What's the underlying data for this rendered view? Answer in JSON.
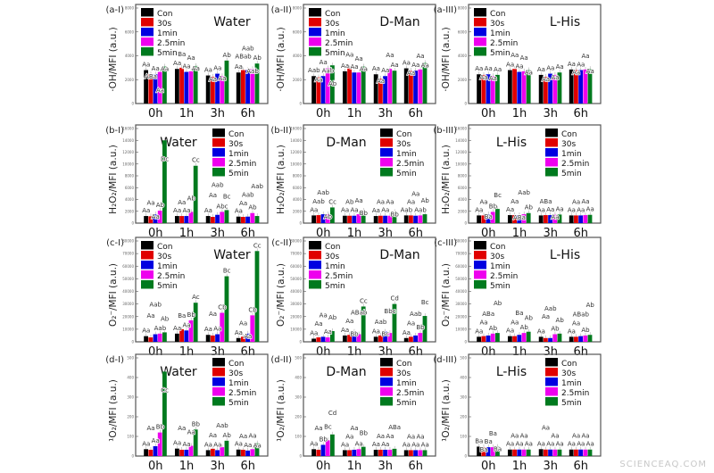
{
  "legend": [
    "Con",
    "30s",
    "1min",
    "2.5min",
    "5min"
  ],
  "series_colors": [
    "#000000",
    "#e00000",
    "#0000e0",
    "#ee00ee",
    "#007a1e"
  ],
  "categories": [
    "0h",
    "1h",
    "3h",
    "6h"
  ],
  "watermark": "SCIENCEAQ.COM",
  "chart_data": [
    {
      "type": "bar",
      "panel": "(a-I)",
      "title": "Water",
      "ylabel": "·OH/MFI (a.u.)",
      "ylim": [
        0,
        8000
      ],
      "yticks": [
        "0",
        "2000",
        "4000",
        "6000",
        "8000"
      ],
      "legend_position": "top-left",
      "series_values": [
        [
          2800,
          2450,
          2450,
          2650,
          3100
        ],
        [
          2900,
          3000,
          2650,
          2700,
          3150
        ],
        [
          2350,
          2250,
          2500,
          2300,
          3600
        ],
        [
          2600,
          2800,
          2800,
          2900,
          3350
        ]
      ],
      "labels": [
        [
          "Aa",
          "ABa",
          "Aa",
          "Aa",
          "Aa"
        ],
        [
          "Aa",
          "Ba",
          "Aa",
          "Aa",
          "Aa"
        ],
        [
          "Aa",
          "Aa",
          "Aa",
          "Aa",
          "Ab"
        ],
        [
          "Aa",
          "ABab",
          "Aab",
          "Aab",
          "Ab"
        ]
      ]
    },
    {
      "type": "bar",
      "panel": "(a-II)",
      "title": "D-Man",
      "ylabel": "·OH/MFI (a.u.)",
      "ylim": [
        0,
        8000
      ],
      "yticks": [
        "0",
        "2000",
        "4000",
        "6000",
        "8000"
      ],
      "legend_position": "top-left",
      "series_values": [
        [
          2300,
          2200,
          2300,
          2950,
          3200
        ],
        [
          2700,
          2950,
          2600,
          2600,
          3100
        ],
        [
          2450,
          2100,
          2300,
          2900,
          2750
        ],
        [
          2950,
          2750,
          2750,
          2850,
          3400
        ]
      ],
      "labels": [
        [
          "Aab",
          "Aa",
          "Aa",
          "Aab",
          "Ab"
        ],
        [
          "Aa",
          "Aa",
          "Aa",
          "Aa",
          "Aa"
        ],
        [
          "Aa",
          "Aa",
          "Aa",
          "Aa",
          "Aa"
        ],
        [
          "Aa",
          "Aa",
          "Aa",
          "Aa",
          "Aa"
        ]
      ]
    },
    {
      "type": "bar",
      "panel": "(a-III)",
      "title": "L-His",
      "ylabel": "·OH/MFI (a.u.)",
      "ylim": [
        0,
        8000
      ],
      "yticks": [
        "0",
        "2000",
        "4000",
        "6000",
        "8000"
      ],
      "legend_position": "top-left",
      "series_values": [
        [
          2450,
          2400,
          2450,
          2300,
          2400
        ],
        [
          2800,
          2900,
          2650,
          2700,
          2800
        ],
        [
          2400,
          2250,
          2500,
          2400,
          2600
        ],
        [
          2850,
          2800,
          2800,
          2850,
          2900
        ]
      ],
      "labels": [
        [
          "Aa",
          "Aa",
          "Aa",
          "Aa",
          "Aa"
        ],
        [
          "Aa",
          "Aa",
          "Aa",
          "Aa",
          "Aa"
        ],
        [
          "Aa",
          "Aa",
          "Aa",
          "Aa",
          "Aa"
        ],
        [
          "Aa",
          "Aa",
          "Aa",
          "Aa",
          "Aa"
        ]
      ]
    },
    {
      "type": "bar",
      "panel": "(b-I)",
      "title": "Water",
      "ylabel": "H₂O₂/MFI (a.u.)",
      "ylim": [
        0,
        16000
      ],
      "yticks": [
        "0",
        "2000",
        "4000",
        "6000",
        "8000",
        "10000",
        "12000",
        "14000",
        "16000"
      ],
      "legend_position": "top-right",
      "series_values": [
        [
          1200,
          1150,
          1500,
          2100,
          14000
        ],
        [
          1200,
          1200,
          1200,
          1900,
          9700
        ],
        [
          1200,
          1050,
          1400,
          1900,
          2200
        ],
        [
          1100,
          1050,
          1100,
          1700,
          1200
        ]
      ],
      "labels": [
        [
          "Aa",
          "Aa",
          "Aa",
          "Ab",
          "Dc"
        ],
        [
          "Aa",
          "Aa",
          "Aa",
          "Ab",
          "Cc"
        ],
        [
          "Aa",
          "Aa",
          "Aab",
          "Abc",
          "Bc"
        ],
        [
          "Aa",
          "Aa",
          "Aab",
          "Ab",
          "Aab"
        ]
      ]
    },
    {
      "type": "bar",
      "panel": "(b-II)",
      "title": "D-Man",
      "ylabel": "H₂O₂/MFI (a.u.)",
      "ylim": [
        0,
        16000
      ],
      "yticks": [
        "0",
        "2000",
        "4000",
        "6000",
        "8000",
        "10000",
        "12000",
        "14000",
        "16000"
      ],
      "legend_position": "top-right",
      "series_values": [
        [
          1300,
          1350,
          1500,
          1500,
          2650
        ],
        [
          1250,
          1250,
          1250,
          1500,
          2100
        ],
        [
          1200,
          1250,
          1250,
          1250,
          1900
        ],
        [
          1300,
          1300,
          1250,
          1300,
          1500
        ]
      ],
      "labels": [
        [
          "Aa",
          "Aab",
          "Aab",
          "Ab",
          "Cc"
        ],
        [
          "Aa",
          "Ab",
          "Aa",
          "Aa",
          "Bb"
        ],
        [
          "Aa",
          "Aa",
          "Aa",
          "Aa",
          "Bb"
        ],
        [
          "Aab",
          "Aa",
          "Aa",
          "Aab",
          "Ab"
        ]
      ]
    },
    {
      "type": "bar",
      "panel": "(b-III)",
      "title": "L-His",
      "ylabel": "H₂O₂/MFI (a.u.)",
      "ylim": [
        0,
        16000
      ],
      "yticks": [
        "0",
        "2000",
        "4000",
        "6000",
        "8000",
        "10000",
        "12000",
        "14000",
        "16000"
      ],
      "legend_position": "top-right",
      "series_values": [
        [
          1300,
          1300,
          1500,
          1900,
          2400
        ],
        [
          1350,
          1350,
          1350,
          1500,
          1700
        ],
        [
          1300,
          1350,
          1350,
          1400,
          1450
        ],
        [
          1300,
          1300,
          1300,
          1350,
          1400
        ]
      ],
      "labels": [
        [
          "Aa",
          "Aa",
          "Ba",
          "Bb",
          "Bc"
        ],
        [
          "Aa",
          "Aa",
          "ABa",
          "Aab",
          "Ab"
        ],
        [
          "Aa",
          "ABa",
          "Aa",
          "Aa",
          "Aa"
        ],
        [
          "Aa",
          "Aa",
          "Aa",
          "Aa",
          "Aa"
        ]
      ]
    },
    {
      "type": "bar",
      "panel": "(c-I)",
      "title": "Water",
      "ylabel": "O₂⁻/MFI (a.u.)",
      "ylim": [
        0,
        80000
      ],
      "yticks": [
        "0",
        "10000",
        "20000",
        "30000",
        "40000",
        "50000",
        "60000",
        "70000",
        "80000"
      ],
      "legend_position": "top-left",
      "series_values": [
        [
          4500,
          3500,
          6000,
          6500,
          7500
        ],
        [
          6500,
          10000,
          9000,
          17000,
          31000
        ],
        [
          5500,
          5000,
          6000,
          23000,
          52000
        ],
        [
          3000,
          4000,
          6500,
          21000,
          72000
        ]
      ],
      "labels": [
        [
          "Aa",
          "Aa",
          "Aab",
          "Aab",
          "Ab"
        ],
        [
          "Aa",
          "Ba",
          "Aa",
          "Bb",
          "Ac"
        ],
        [
          "Aa",
          "Aa",
          "Aa",
          "Cb",
          "Bc"
        ],
        [
          "Aa",
          "Aa",
          "Aa",
          "Cb",
          "Cc"
        ]
      ]
    },
    {
      "type": "bar",
      "panel": "(c-II)",
      "title": "D-Man",
      "ylabel": "O₂⁻/MFI (a.u.)",
      "ylim": [
        0,
        80000
      ],
      "yticks": [
        "0",
        "10000",
        "20000",
        "30000",
        "40000",
        "50000",
        "60000",
        "70000",
        "80000"
      ],
      "legend_position": "top-left",
      "series_values": [
        [
          2500,
          3500,
          4000,
          3500,
          8500
        ],
        [
          5000,
          5500,
          8000,
          6000,
          28000
        ],
        [
          4000,
          5000,
          8000,
          7000,
          30000
        ],
        [
          3000,
          4000,
          5000,
          7000,
          20500
        ]
      ],
      "labels": [
        [
          "Aa",
          "Aa",
          "Aa",
          "Aa",
          "Ab"
        ],
        [
          "Aa",
          "Aa",
          "Bb",
          "ABab",
          "Cc"
        ],
        [
          "Aa",
          "Aab",
          "Bc",
          "Bbc",
          "Cd"
        ],
        [
          "Aa",
          "Aa",
          "Aab",
          "Bb",
          "Bc"
        ]
      ]
    },
    {
      "type": "bar",
      "panel": "(c-III)",
      "title": "L-His",
      "ylabel": "O₂⁻/MFI (a.u.)",
      "ylim": [
        0,
        80000
      ],
      "yticks": [
        "0",
        "10000",
        "20000",
        "30000",
        "40000",
        "50000",
        "60000",
        "70000",
        "80000"
      ],
      "legend_position": "top-left",
      "series_values": [
        [
          4000,
          4500,
          5000,
          6500,
          7000
        ],
        [
          4500,
          4500,
          5500,
          7000,
          8000
        ],
        [
          4000,
          3000,
          3000,
          6000,
          6500
        ],
        [
          4000,
          4000,
          4500,
          5000,
          5500
        ]
      ],
      "labels": [
        [
          "Aa",
          "Aa",
          "ABa",
          "Ab",
          "Ab"
        ],
        [
          "Aa",
          "Aa",
          "Ba",
          "Ab",
          "Ab"
        ],
        [
          "Aa",
          "Aa",
          "Aab",
          "Ab",
          "Ab"
        ],
        [
          "Aa",
          "Aa",
          "ABab",
          "Ab",
          "Ab"
        ]
      ]
    },
    {
      "type": "bar",
      "panel": "(d-I)",
      "title": "Water",
      "ylabel": "¹O₂/MFI (a.u.)",
      "ylim": [
        0,
        500
      ],
      "yticks": [
        "0",
        "100",
        "200",
        "300",
        "400",
        "500"
      ],
      "legend_position": "top-right",
      "series_values": [
        [
          35,
          32,
          50,
          120,
          430
        ],
        [
          38,
          32,
          32,
          52,
          135
        ],
        [
          30,
          37,
          30,
          45,
          78
        ],
        [
          33,
          32,
          28,
          35,
          65
        ]
      ],
      "labels": [
        [
          "Aa",
          "Aa",
          "Aa",
          "Bb",
          "Cc"
        ],
        [
          "Aa",
          "Aa",
          "Aa",
          "Aa",
          "Bb"
        ],
        [
          "Aa",
          "Aa",
          "Aa",
          "Aab",
          "Ab"
        ],
        [
          "Aa",
          "Aa",
          "Aa",
          "Aa",
          "Aa"
        ]
      ]
    },
    {
      "type": "bar",
      "panel": "(d-II)",
      "title": "D-Man",
      "ylabel": "¹O₂/MFI (a.u.)",
      "ylim": [
        0,
        500
      ],
      "yticks": [
        "0",
        "100",
        "200",
        "300",
        "400",
        "500"
      ],
      "legend_position": "top-right",
      "series_values": [
        [
          35,
          32,
          57,
          80,
          110
        ],
        [
          30,
          30,
          32,
          35,
          47
        ],
        [
          32,
          32,
          32,
          32,
          37
        ],
        [
          30,
          30,
          30,
          30,
          30
        ]
      ],
      "labels": [
        [
          "Aa",
          "Aa",
          "Bb",
          "Bc",
          "Cd"
        ],
        [
          "Aa",
          "Aa",
          "Aa",
          "Aa",
          "Bb"
        ],
        [
          "Aa",
          "Aa",
          "Aa",
          "Aa",
          "ABa"
        ],
        [
          "Aa",
          "Aa",
          "Aa",
          "Aa",
          "Aa"
        ]
      ]
    },
    {
      "type": "bar",
      "panel": "(d-III)",
      "title": "L-His",
      "ylabel": "¹O₂/MFI (a.u.)",
      "ylim": [
        0,
        500
      ],
      "yticks": [
        "0",
        "100",
        "200",
        "300",
        "400",
        "500"
      ],
      "legend_position": "top-right",
      "series_values": [
        [
          48,
          45,
          45,
          45,
          47
        ],
        [
          33,
          33,
          33,
          33,
          33
        ],
        [
          35,
          33,
          33,
          33,
          33
        ],
        [
          33,
          33,
          33,
          33,
          33
        ]
      ],
      "labels": [
        [
          "Ba",
          "Ba",
          "Ba",
          "Ba",
          "Ba"
        ],
        [
          "Aa",
          "Aa",
          "Aa",
          "Aa",
          "Aa"
        ],
        [
          "Aa",
          "Aa",
          "Aa",
          "Aa",
          "Aa"
        ],
        [
          "Aa",
          "Aa",
          "Aa",
          "Aa",
          "Aa"
        ]
      ]
    }
  ]
}
